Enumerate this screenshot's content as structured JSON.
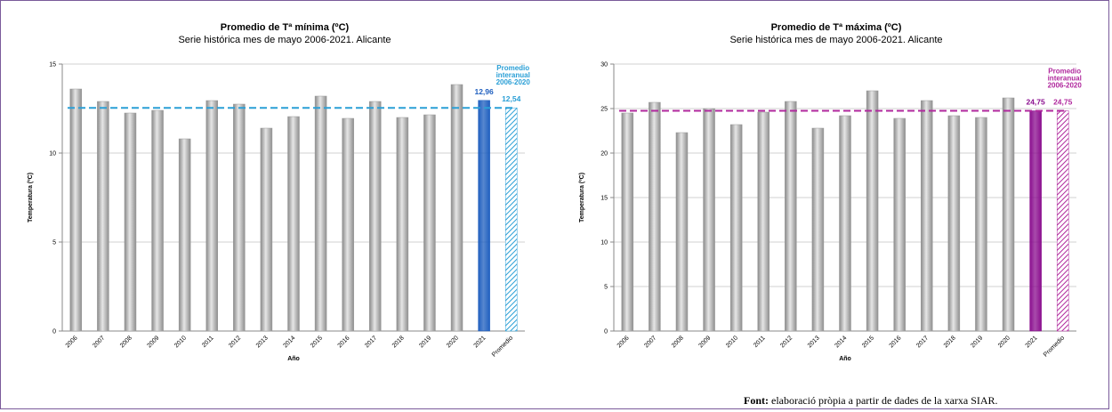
{
  "source_note": {
    "label": "Font:",
    "text": " elaboració pròpia a partir de dades de la xarxa SIAR."
  },
  "chart_data": [
    {
      "type": "bar",
      "title": "Promedio de Tª mínima (ºC)",
      "subtitle": "Serie histórica mes de mayo 2006-2021. Alicante",
      "xlabel": "Año",
      "ylabel": "Temperatura (ºC)",
      "ylim": [
        0,
        15
      ],
      "yticks": [
        0,
        5,
        10,
        15
      ],
      "categories": [
        "2006",
        "2007",
        "2008",
        "2009",
        "2010",
        "2011",
        "2012",
        "2013",
        "2014",
        "2015",
        "2016",
        "2017",
        "2018",
        "2019",
        "2020",
        "2021",
        "Promedio"
      ],
      "values": [
        13.6,
        12.9,
        12.25,
        12.4,
        10.8,
        12.95,
        12.75,
        11.4,
        12.05,
        13.2,
        11.95,
        12.9,
        12.0,
        12.15,
        13.85,
        12.96,
        12.54
      ],
      "highlight": {
        "value": 12.96,
        "label": "12,96",
        "color": "#1f5fbf"
      },
      "average": {
        "value": 12.54,
        "label": "12,54",
        "legend": [
          "Promedio",
          "interanual",
          "2006-2020"
        ],
        "color": "#2a9fd6"
      },
      "bar_color": "#b3b3b3",
      "grid": true
    },
    {
      "type": "bar",
      "title": "Promedio de Tª máxima (ºC)",
      "subtitle": "Serie histórica mes de mayo 2006-2021. Alicante",
      "xlabel": "Año",
      "ylabel": "Temperatura (ºC)",
      "ylim": [
        0,
        30
      ],
      "yticks": [
        0,
        5,
        10,
        15,
        20,
        25,
        30
      ],
      "categories": [
        "2006",
        "2007",
        "2008",
        "2009",
        "2010",
        "2011",
        "2012",
        "2013",
        "2014",
        "2015",
        "2016",
        "2017",
        "2018",
        "2019",
        "2020",
        "2021",
        "Promedio"
      ],
      "values": [
        24.5,
        25.7,
        22.3,
        25.0,
        23.2,
        24.6,
        25.8,
        22.8,
        24.2,
        27.0,
        23.9,
        25.9,
        24.2,
        24.0,
        26.2,
        24.75,
        24.75
      ],
      "highlight": {
        "value": 24.75,
        "label": "24,75",
        "color": "#8b0f8f"
      },
      "average": {
        "value": 24.75,
        "label": "24,75",
        "legend": [
          "Promedio",
          "interanual",
          "2006-2020"
        ],
        "color": "#b0289d"
      },
      "bar_color": "#b3b3b3",
      "grid": true
    }
  ]
}
